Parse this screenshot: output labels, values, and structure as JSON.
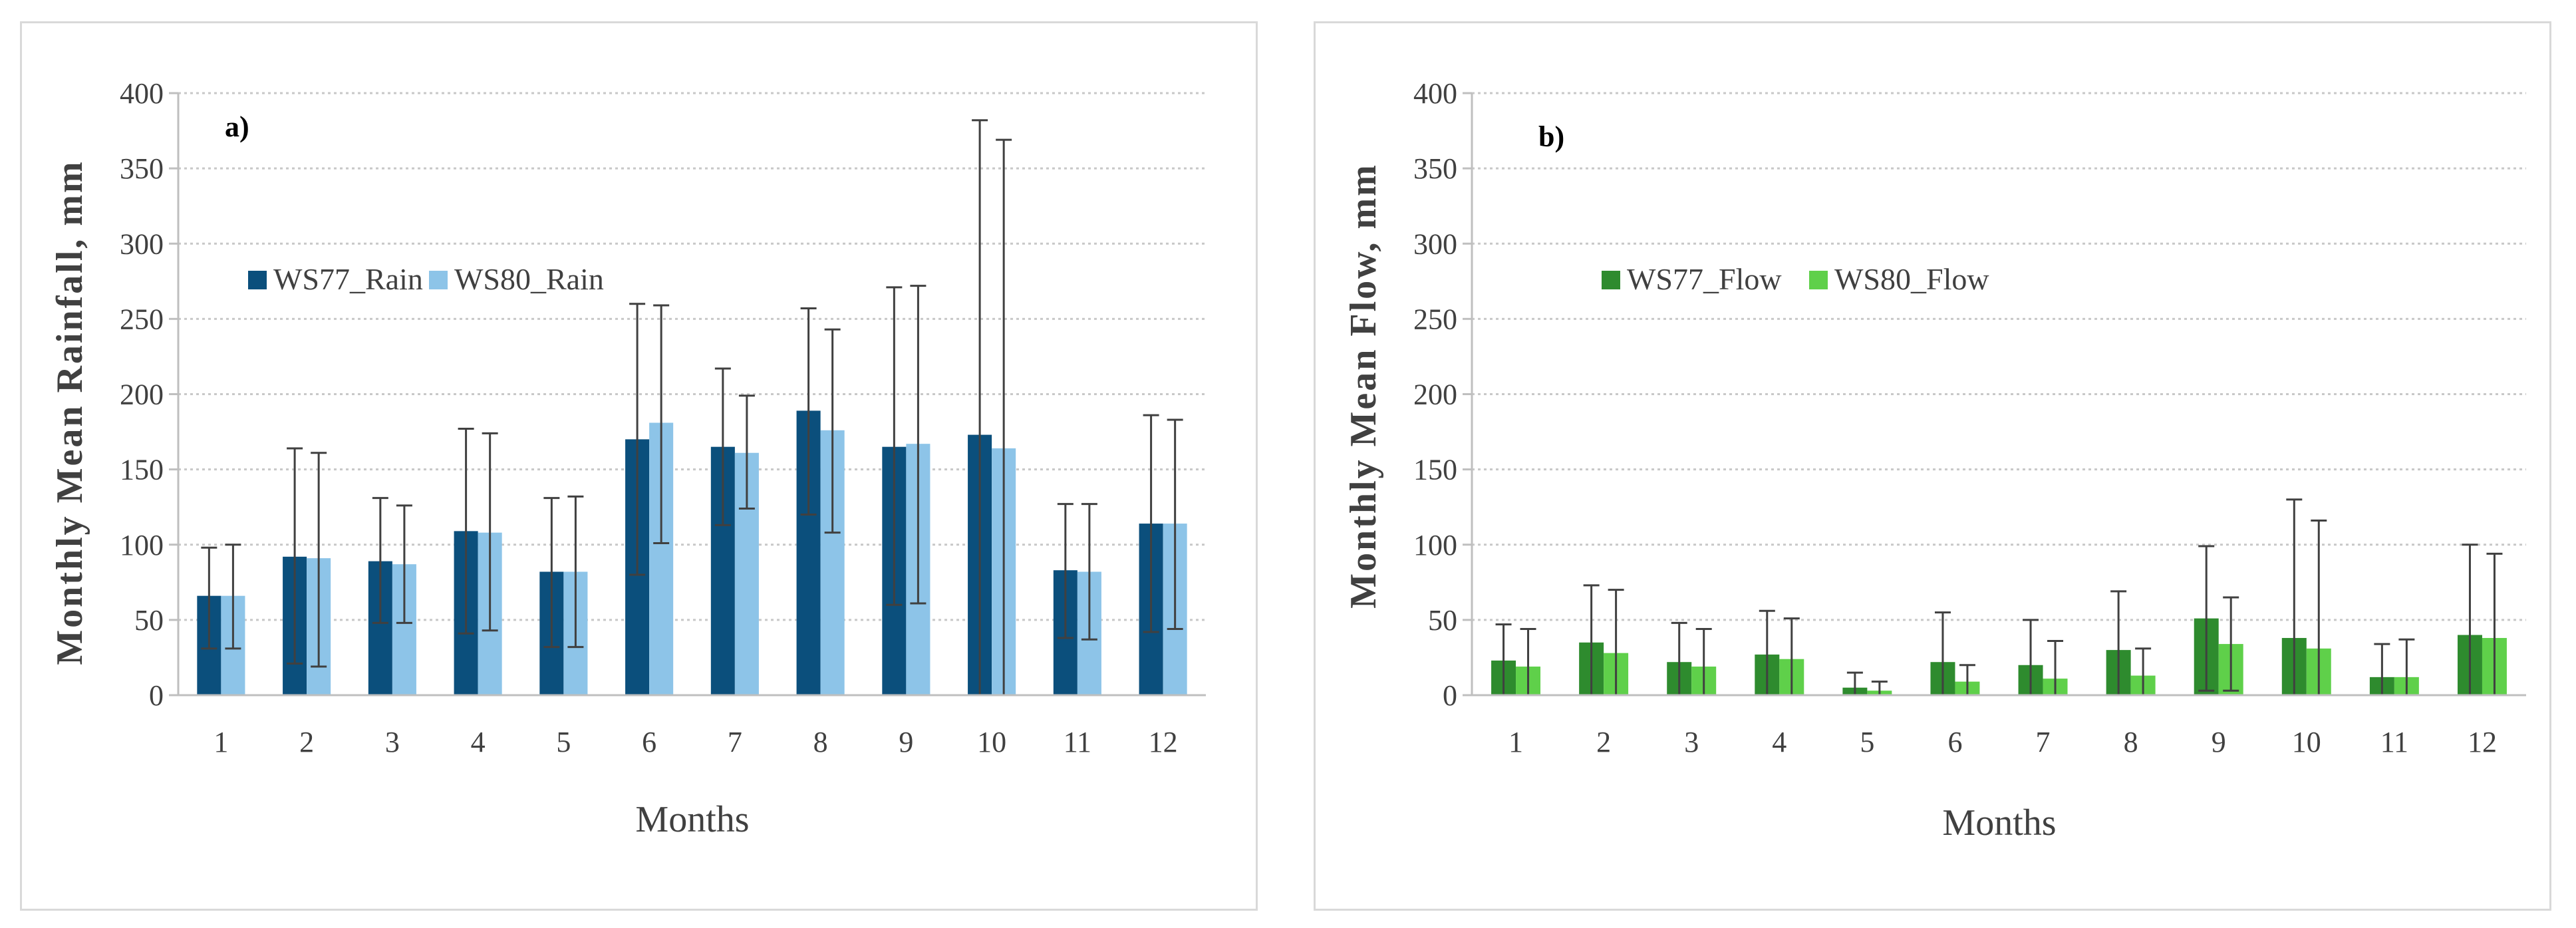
{
  "chart_data": [
    {
      "type": "bar",
      "panel_label": "a)",
      "xlabel": "Months",
      "ylabel": "Monthly Mean Rainfall, mm",
      "ylim": [
        0,
        400
      ],
      "yticks": [
        0,
        50,
        100,
        150,
        200,
        250,
        300,
        350,
        400
      ],
      "grid": true,
      "legend_position": "upper-left",
      "categories": [
        "1",
        "2",
        "3",
        "4",
        "5",
        "6",
        "7",
        "8",
        "9",
        "10",
        "11",
        "12"
      ],
      "series": [
        {
          "name": "WS77_Rain",
          "color": "#0b4f7c",
          "values": [
            66,
            92,
            89,
            109,
            82,
            170,
            165,
            189,
            165,
            173,
            83,
            114
          ],
          "error_low": [
            31,
            21,
            48,
            41,
            32,
            80,
            113,
            120,
            60,
            0,
            38,
            42
          ],
          "error_high": [
            98,
            164,
            131,
            177,
            131,
            260,
            217,
            257,
            271,
            382,
            127,
            186
          ]
        },
        {
          "name": "WS80_Rain",
          "color": "#8dc4e8",
          "values": [
            66,
            91,
            87,
            108,
            82,
            181,
            161,
            176,
            167,
            164,
            82,
            114
          ],
          "error_low": [
            31,
            19,
            48,
            43,
            32,
            101,
            124,
            108,
            61,
            0,
            37,
            44
          ],
          "error_high": [
            100,
            161,
            126,
            174,
            132,
            259,
            199,
            243,
            272,
            369,
            127,
            183
          ]
        }
      ]
    },
    {
      "type": "bar",
      "panel_label": "b)",
      "xlabel": "Months",
      "ylabel": "Monthly Mean Flow, mm",
      "ylim": [
        0,
        400
      ],
      "yticks": [
        0,
        50,
        100,
        150,
        200,
        250,
        300,
        350,
        400
      ],
      "grid": true,
      "legend_position": "upper-left",
      "categories": [
        "1",
        "2",
        "3",
        "4",
        "5",
        "6",
        "7",
        "8",
        "9",
        "10",
        "11",
        "12"
      ],
      "series": [
        {
          "name": "WS77_Flow",
          "color": "#2e8b2e",
          "values": [
            23,
            35,
            22,
            27,
            5,
            22,
            20,
            30,
            51,
            38,
            12,
            40
          ],
          "error_low": [
            0,
            0,
            0,
            0,
            0,
            0,
            0,
            0,
            3,
            0,
            0,
            0
          ],
          "error_high": [
            47,
            73,
            48,
            56,
            15,
            55,
            50,
            69,
            99,
            130,
            34,
            100
          ]
        },
        {
          "name": "WS80_Flow",
          "color": "#5fd04a",
          "values": [
            19,
            28,
            19,
            24,
            3,
            9,
            11,
            13,
            34,
            31,
            12,
            38
          ],
          "error_low": [
            0,
            0,
            0,
            0,
            0,
            0,
            0,
            0,
            3,
            0,
            0,
            0
          ],
          "error_high": [
            44,
            70,
            44,
            51,
            9,
            20,
            36,
            31,
            65,
            116,
            37,
            94
          ]
        }
      ]
    }
  ]
}
